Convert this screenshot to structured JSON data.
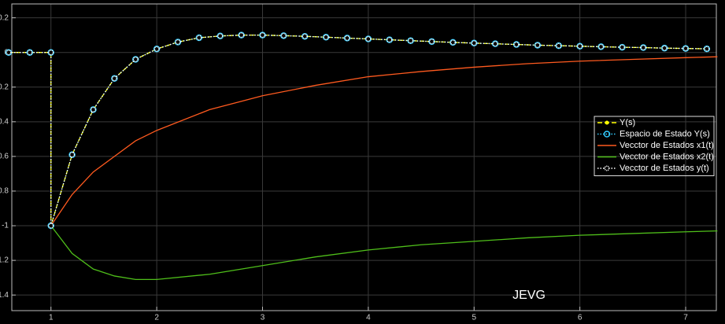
{
  "chart_data": {
    "type": "line",
    "annotation": "JEVG",
    "xlim": [
      0.63,
      7.29
    ],
    "ylim": [
      -1.49,
      0.28
    ],
    "xticks": [
      1,
      2,
      3,
      4,
      5,
      6,
      7
    ],
    "yticks": [
      0.2,
      0,
      -0.2,
      -0.4,
      -0.6,
      -0.8,
      -1,
      -1.2,
      -1.4
    ],
    "grid": true,
    "legend": "right",
    "series": [
      {
        "name": "Y(s)",
        "color": "#ffff00",
        "line_style": "dashed",
        "marker": "dot",
        "x": [
          0.6,
          0.8,
          1,
          1,
          1.2,
          1.4,
          1.6,
          1.8,
          2.0,
          2.2,
          2.4,
          2.6,
          2.8,
          3.0,
          3.2,
          3.4,
          3.6,
          3.8,
          4.0,
          4.2,
          4.4,
          4.6,
          4.8,
          5.0,
          5.2,
          5.4,
          5.6,
          5.8,
          6.0,
          6.2,
          6.4,
          6.6,
          6.8,
          7.0,
          7.2
        ],
        "values": [
          0,
          0,
          0,
          -1,
          -0.59,
          -0.33,
          -0.15,
          -0.04,
          0.02,
          0.06,
          0.085,
          0.095,
          0.1,
          0.1,
          0.097,
          0.093,
          0.088,
          0.083,
          0.078,
          0.073,
          0.068,
          0.063,
          0.058,
          0.054,
          0.05,
          0.046,
          0.042,
          0.039,
          0.036,
          0.033,
          0.03,
          0.028,
          0.025,
          0.023,
          0.021
        ]
      },
      {
        "name": "Espacio de Estado Y(s)",
        "color": "#33ccff",
        "line_style": "dotted",
        "marker": "circle",
        "x": [
          0.6,
          0.8,
          1,
          1,
          1.2,
          1.4,
          1.6,
          1.8,
          2.0,
          2.2,
          2.4,
          2.6,
          2.8,
          3.0,
          3.2,
          3.4,
          3.6,
          3.8,
          4.0,
          4.2,
          4.4,
          4.6,
          4.8,
          5.0,
          5.2,
          5.4,
          5.6,
          5.8,
          6.0,
          6.2,
          6.4,
          6.6,
          6.8,
          7.0,
          7.2
        ],
        "values": [
          0,
          0,
          0,
          -1,
          -0.59,
          -0.33,
          -0.15,
          -0.04,
          0.02,
          0.06,
          0.085,
          0.095,
          0.1,
          0.1,
          0.097,
          0.093,
          0.088,
          0.083,
          0.078,
          0.073,
          0.068,
          0.063,
          0.058,
          0.054,
          0.05,
          0.046,
          0.042,
          0.039,
          0.036,
          0.033,
          0.03,
          0.028,
          0.025,
          0.023,
          0.021
        ]
      },
      {
        "name": "Vecctor de Estados x1(t)",
        "color": "#ff5a1f",
        "line_style": "solid",
        "marker": "none",
        "x": [
          1,
          1.2,
          1.4,
          1.6,
          1.8,
          2,
          2.5,
          3,
          3.5,
          4,
          4.5,
          5,
          5.5,
          6,
          6.5,
          7,
          7.3
        ],
        "values": [
          -1,
          -0.82,
          -0.69,
          -0.6,
          -0.51,
          -0.45,
          -0.33,
          -0.25,
          -0.19,
          -0.14,
          -0.11,
          -0.085,
          -0.065,
          -0.05,
          -0.04,
          -0.03,
          -0.025
        ]
      },
      {
        "name": "Vecctor de Estados x2(t)",
        "color": "#4fbf1a",
        "line_style": "solid",
        "marker": "none",
        "x": [
          1,
          1.2,
          1.4,
          1.6,
          1.8,
          2,
          2.5,
          3,
          3.5,
          4,
          4.5,
          5,
          5.5,
          6,
          6.5,
          7,
          7.3
        ],
        "values": [
          -1,
          -1.16,
          -1.25,
          -1.29,
          -1.31,
          -1.31,
          -1.28,
          -1.23,
          -1.18,
          -1.14,
          -1.11,
          -1.09,
          -1.07,
          -1.055,
          -1.045,
          -1.035,
          -1.03
        ]
      },
      {
        "name": "Vecctor de Estados y(t)",
        "color": "#ffffff",
        "line_style": "dotted",
        "marker": "star",
        "x": [
          0.6,
          0.8,
          1,
          1,
          1.2,
          1.4,
          1.6,
          1.8,
          2.0,
          2.2,
          2.4,
          2.6,
          2.8,
          3.0,
          3.2,
          3.4,
          3.6,
          3.8,
          4.0,
          4.2,
          4.4,
          4.6,
          4.8,
          5.0,
          5.2,
          5.4,
          5.6,
          5.8,
          6.0,
          6.2,
          6.4,
          6.6,
          6.8,
          7.0,
          7.2
        ],
        "values": [
          0,
          0,
          0,
          -1,
          -0.59,
          -0.33,
          -0.15,
          -0.04,
          0.02,
          0.06,
          0.085,
          0.095,
          0.1,
          0.1,
          0.097,
          0.093,
          0.088,
          0.083,
          0.078,
          0.073,
          0.068,
          0.063,
          0.058,
          0.054,
          0.05,
          0.046,
          0.042,
          0.039,
          0.036,
          0.033,
          0.03,
          0.028,
          0.025,
          0.023,
          0.021
        ]
      }
    ]
  }
}
